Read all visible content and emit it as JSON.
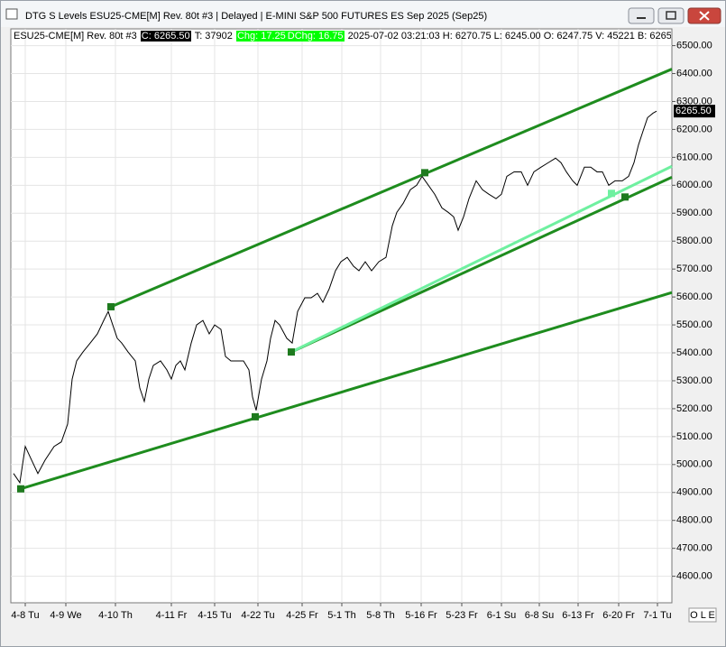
{
  "window": {
    "title": "DTG S Levels ESU25-CME[M]  Rev. 80t #3 | Delayed | E-MINI S&P 500 FUTURES ES Sep 2025 (Sep25)",
    "status": "O L E"
  },
  "info": {
    "symbol": "ESU25-CME[M]  Rev. 80t #3",
    "close": "C: 6265.50",
    "ticks": "T: 37902",
    "chg": "Chg: 17.25",
    "dchg": "DChg: 16.75",
    "rest": "2025-07-02 03:21:03 H: 6270.75 L: 6245.00 O: 6247.75 V: 45221 B: 6265"
  },
  "chart_data": {
    "type": "line",
    "grid": true,
    "ylim": [
      4505,
      6560
    ],
    "yticks": [
      {
        "value": 4600,
        "label": "4600.00"
      },
      {
        "value": 4700,
        "label": "4700.00"
      },
      {
        "value": 4800,
        "label": "4800.00"
      },
      {
        "value": 4900,
        "label": "4900.00"
      },
      {
        "value": 5000,
        "label": "5000.00"
      },
      {
        "value": 5100,
        "label": "5100.00"
      },
      {
        "value": 5200,
        "label": "5200.00"
      },
      {
        "value": 5300,
        "label": "5300.00"
      },
      {
        "value": 5400,
        "label": "5400.00"
      },
      {
        "value": 5500,
        "label": "5500.00"
      },
      {
        "value": 5600,
        "label": "5600.00"
      },
      {
        "value": 5700,
        "label": "5700.00"
      },
      {
        "value": 5800,
        "label": "5800.00"
      },
      {
        "value": 5900,
        "label": "5900.00"
      },
      {
        "value": 6000,
        "label": "6000.00"
      },
      {
        "value": 6100,
        "label": "6100.00"
      },
      {
        "value": 6200,
        "label": "6200.00"
      },
      {
        "value": 6300,
        "label": "6300.00"
      },
      {
        "value": 6400,
        "label": "6400.00"
      },
      {
        "value": 6500,
        "label": "6500.00"
      }
    ],
    "xlim": [
      0,
      733
    ],
    "xticks": [
      {
        "value": 16,
        "label": "4-8 Tu"
      },
      {
        "value": 61,
        "label": "4-9 We"
      },
      {
        "value": 116,
        "label": "4-10 Th"
      },
      {
        "value": 178,
        "label": "4-11 Fr"
      },
      {
        "value": 226,
        "label": "4-15 Tu"
      },
      {
        "value": 274,
        "label": "4-22 Tu"
      },
      {
        "value": 323,
        "label": "4-25 Fr"
      },
      {
        "value": 367,
        "label": "5-1 Th"
      },
      {
        "value": 410,
        "label": "5-8 Th"
      },
      {
        "value": 455,
        "label": "5-16 Fr"
      },
      {
        "value": 500,
        "label": "5-23 Fr"
      },
      {
        "value": 544,
        "label": "6-1 Su"
      },
      {
        "value": 586,
        "label": "6-8 Su"
      },
      {
        "value": 629,
        "label": "6-13 Fr"
      },
      {
        "value": 674,
        "label": "6-20 Fr"
      },
      {
        "value": 717,
        "label": "7-1 Tu"
      }
    ],
    "series": [
      {
        "color": "#000000",
        "width": 1,
        "x": [
          3,
          10,
          16,
          23,
          30,
          38,
          48,
          56,
          63,
          68,
          73,
          80,
          88,
          96,
          103,
          108,
          113,
          118,
          123,
          130,
          138,
          143,
          148,
          153,
          158,
          166,
          173,
          178,
          183,
          188,
          193,
          200,
          206,
          213,
          220,
          226,
          233,
          238,
          244,
          250,
          258,
          264,
          268,
          272,
          278,
          284,
          288,
          293,
          298,
          306,
          312,
          318,
          326,
          333,
          340,
          346,
          353,
          360,
          366,
          373,
          380,
          386,
          393,
          400,
          408,
          416,
          423,
          428,
          435,
          443,
          450,
          456,
          463,
          470,
          478,
          485,
          491,
          496,
          502,
          508,
          516,
          523,
          530,
          538,
          544,
          550,
          558,
          566,
          573,
          580,
          588,
          596,
          604,
          610,
          616,
          623,
          628,
          636,
          643,
          650,
          656,
          663,
          670,
          678,
          685,
          691,
          696,
          701,
          706,
          712,
          716
        ],
        "values": [
          4968,
          4935,
          5065,
          5016,
          4968,
          5016,
          5065,
          5081,
          5145,
          5306,
          5371,
          5403,
          5435,
          5468,
          5516,
          5548,
          5500,
          5452,
          5435,
          5403,
          5371,
          5274,
          5226,
          5306,
          5355,
          5371,
          5339,
          5306,
          5355,
          5371,
          5339,
          5435,
          5500,
          5516,
          5468,
          5500,
          5484,
          5387,
          5371,
          5371,
          5371,
          5339,
          5242,
          5194,
          5306,
          5371,
          5452,
          5516,
          5500,
          5452,
          5435,
          5548,
          5597,
          5597,
          5613,
          5581,
          5629,
          5694,
          5726,
          5742,
          5710,
          5694,
          5726,
          5694,
          5726,
          5742,
          5855,
          5903,
          5935,
          5984,
          6000,
          6032,
          6000,
          5968,
          5919,
          5903,
          5887,
          5839,
          5887,
          5952,
          6016,
          5984,
          5968,
          5952,
          5968,
          6032,
          6048,
          6048,
          6000,
          6048,
          6065,
          6081,
          6097,
          6081,
          6048,
          6016,
          6000,
          6065,
          6065,
          6048,
          6048,
          6000,
          6016,
          6016,
          6032,
          6081,
          6145,
          6194,
          6242,
          6258,
          6265.5
        ]
      },
      {
        "color": "#1e8c1e",
        "width": 3,
        "x": [
          111,
          733
        ],
        "values": [
          5565,
          6416
        ]
      },
      {
        "color": "#1e8c1e",
        "width": 3,
        "x": [
          11,
          733
        ],
        "values": [
          4913,
          5616
        ]
      },
      {
        "color": "#1e8c1e",
        "width": 3,
        "x": [
          311,
          733
        ],
        "values": [
          5403,
          6029
        ]
      },
      {
        "color": "#6ff0a0",
        "width": 3,
        "x": [
          311,
          733
        ],
        "values": [
          5403,
          6068
        ]
      }
    ],
    "anchors": [
      {
        "color": "#1e7a1e",
        "x": [
          111,
          11,
          271,
          459,
          311,
          681
        ],
        "values": [
          5565,
          4913,
          5171,
          6045,
          5403,
          5958
        ]
      },
      {
        "color": "#6ff0a0",
        "x": [
          666
        ],
        "values": [
          5971
        ]
      }
    ],
    "last_label": "6265.50"
  }
}
